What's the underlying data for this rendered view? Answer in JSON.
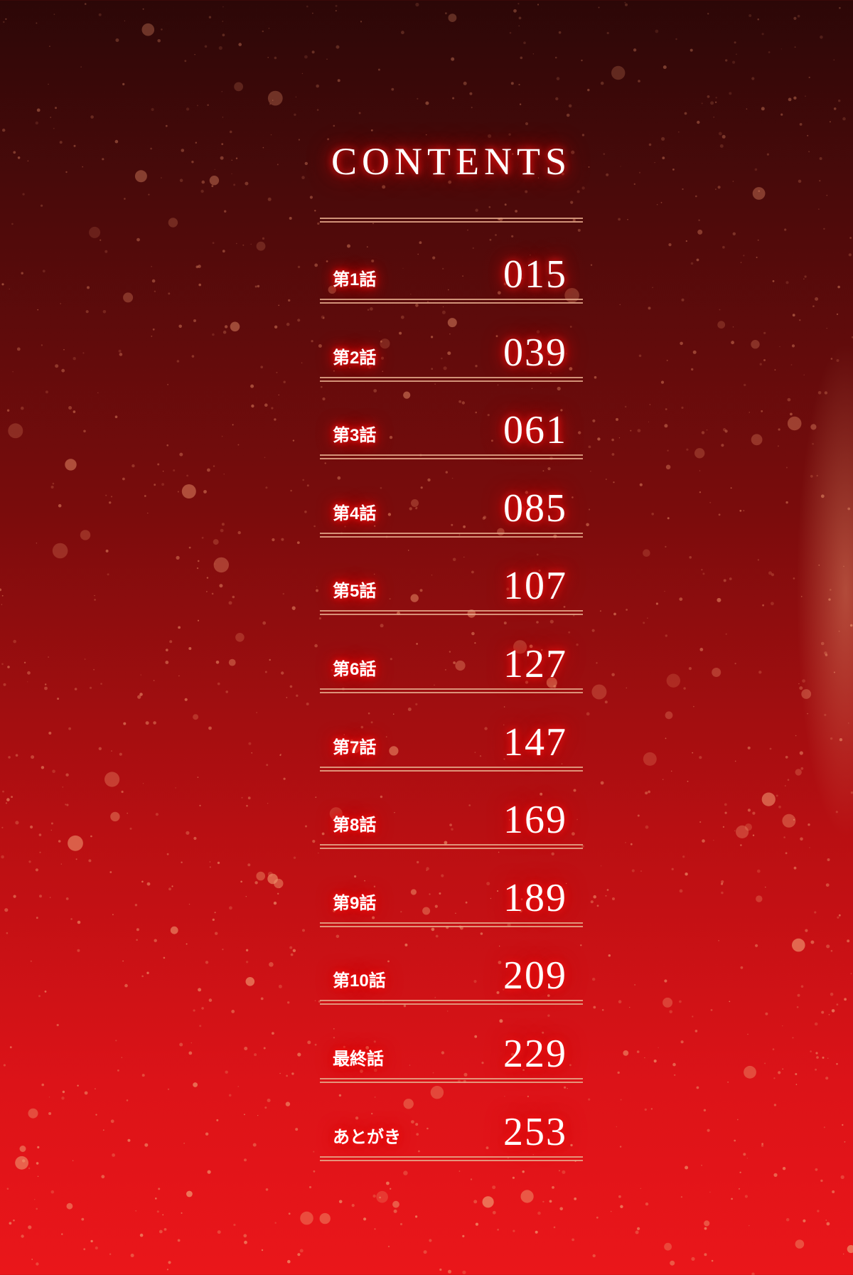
{
  "title": "CONTENTS",
  "colors": {
    "background_top": "#2c0707",
    "background_bottom": "#ea161a",
    "text": "#ffffff",
    "glow": "#ff1a1a",
    "rule": "#e6aa8c"
  },
  "entries": [
    {
      "label": "第1話",
      "page": "015"
    },
    {
      "label": "第2話",
      "page": "039"
    },
    {
      "label": "第3話",
      "page": "061"
    },
    {
      "label": "第4話",
      "page": "085"
    },
    {
      "label": "第5話",
      "page": "107"
    },
    {
      "label": "第6話",
      "page": "127"
    },
    {
      "label": "第7話",
      "page": "147"
    },
    {
      "label": "第8話",
      "page": "169"
    },
    {
      "label": "第9話",
      "page": "189"
    },
    {
      "label": "第10話",
      "page": "209"
    },
    {
      "label": "最終話",
      "page": "229"
    },
    {
      "label": "あとがき",
      "page": "253"
    }
  ]
}
